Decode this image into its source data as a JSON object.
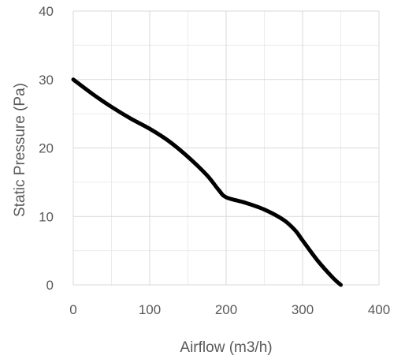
{
  "chart_data": {
    "type": "line",
    "title": "",
    "xlabel": "Airflow (m3/h)",
    "ylabel": "Static Pressure (Pa)",
    "xlim": [
      0,
      400
    ],
    "ylim": [
      0,
      40
    ],
    "x_ticks": [
      0,
      100,
      200,
      300,
      400
    ],
    "y_ticks": [
      0,
      10,
      20,
      30,
      40
    ],
    "grid": true,
    "minor_grid": true,
    "legend": "none",
    "series": [
      {
        "color": "#000000",
        "x": [
          0,
          25,
          50,
          75,
          100,
          125,
          150,
          175,
          190,
          200,
          225,
          250,
          275,
          290,
          300,
          320,
          340,
          350
        ],
        "y": [
          30,
          27.9,
          26,
          24.3,
          22.8,
          21,
          18.7,
          16,
          13.9,
          12.8,
          12,
          11,
          9.5,
          8,
          6.5,
          3.5,
          1,
          0
        ]
      }
    ]
  }
}
